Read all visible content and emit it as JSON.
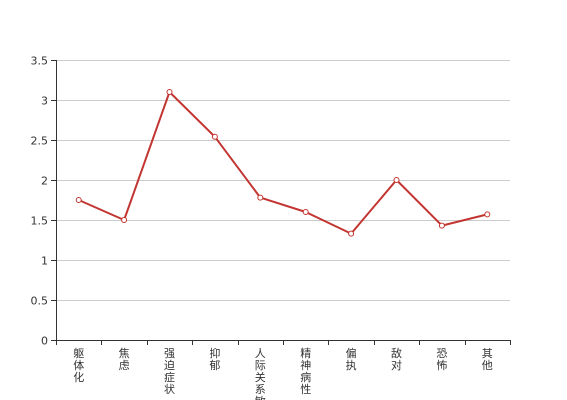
{
  "chart_data": {
    "type": "line",
    "title": "",
    "xlabel": "",
    "ylabel": "",
    "categories": [
      "躯体化",
      "焦虑",
      "强迫症状",
      "抑郁",
      "人际关系敏感",
      "精神病性",
      "偏执",
      "敌对",
      "恐怖",
      "其他"
    ],
    "series": [
      {
        "values": [
          1.75,
          1.5,
          3.1,
          2.54,
          1.78,
          1.6,
          1.33,
          2.0,
          1.43,
          1.57
        ]
      }
    ],
    "ylim": [
      0,
      3.5
    ],
    "yticks": [
      "0",
      "0.5",
      "1",
      "1.5",
      "2",
      "2.5",
      "3",
      "3.5"
    ],
    "grid": true,
    "legend": "none",
    "colors": {
      "line": "#c23531",
      "grid": "#cccccc",
      "axis": "#333333",
      "marker_fill": "#ffffff"
    }
  }
}
